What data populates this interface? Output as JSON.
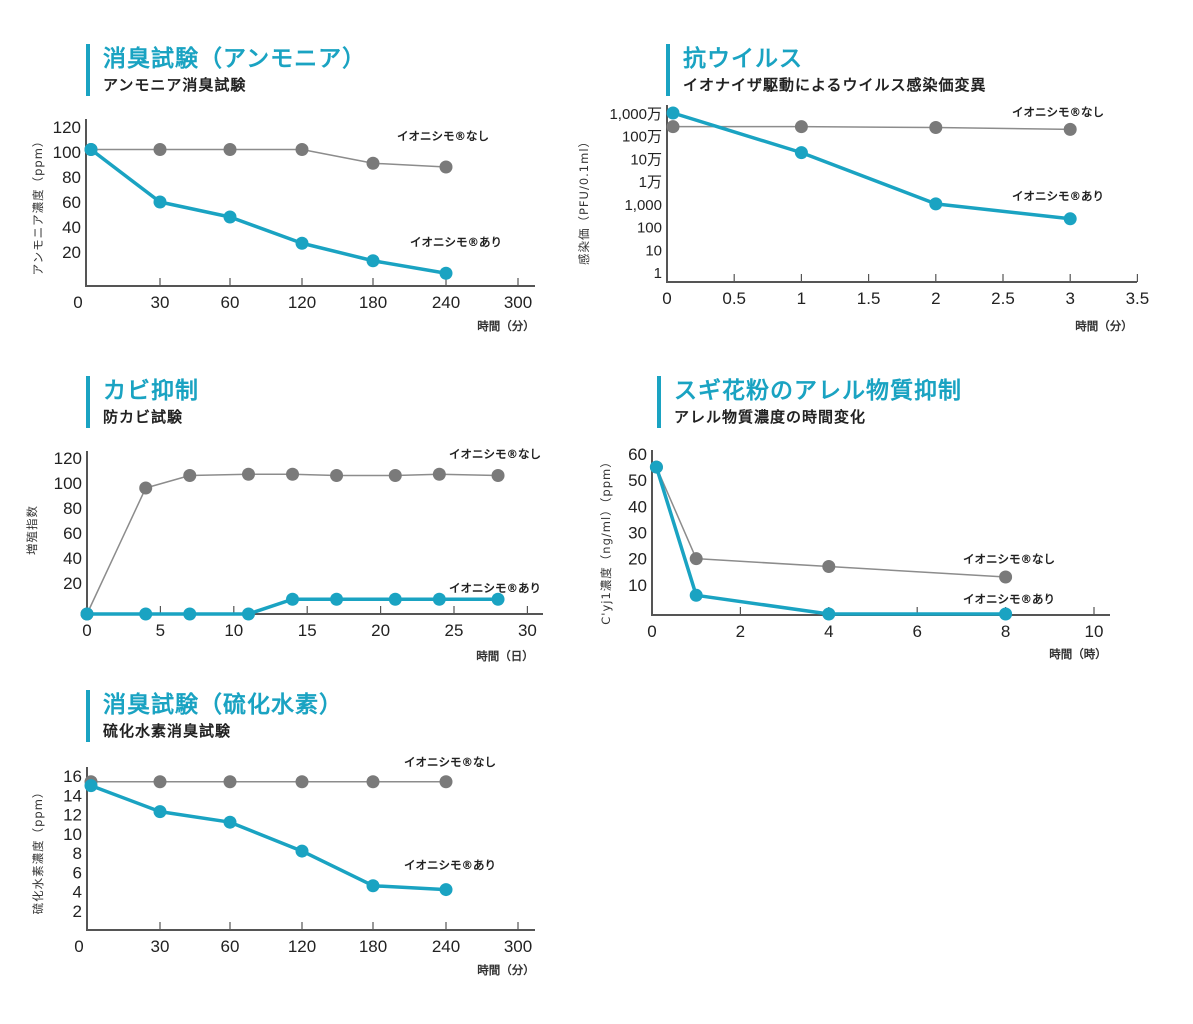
{
  "colors": {
    "accent": "#1aa3c2",
    "without": "#7a7a7a",
    "without_line": "#8c8c8c",
    "axis": "#555555"
  },
  "chart_data": [
    {
      "id": "ammonia",
      "type": "line",
      "title": "消臭試験（アンモニア）",
      "subtitle": "アンモニア消臭試験",
      "xlabel": "時間（分）",
      "ylabel": "アンモニア濃度（ppm）",
      "x_tick_labels": [
        "0",
        "30",
        "60",
        "120",
        "180",
        "240",
        "300"
      ],
      "x_categorical": true,
      "y_ticks": [
        20,
        40,
        60,
        80,
        100,
        120
      ],
      "y_tick_labels": [
        "20",
        "40",
        "60",
        "80",
        "100",
        "120"
      ],
      "ylim": [
        0,
        120
      ],
      "series": [
        {
          "name": "イオニシモ®なし",
          "x": [
            0,
            30,
            60,
            120,
            180,
            240
          ],
          "values": [
            102,
            102,
            102,
            102,
            91,
            88
          ]
        },
        {
          "name": "イオニシモ®あり",
          "x": [
            0,
            30,
            60,
            120,
            180,
            240
          ],
          "values": [
            102,
            60,
            48,
            27,
            13,
            3
          ]
        }
      ]
    },
    {
      "id": "virus",
      "type": "line",
      "title": "抗ウイルス",
      "subtitle": "イオナイザ駆動によるウイルス感染価変異",
      "xlabel": "時間（分）",
      "ylabel": "感染価（PFU/0.1ml）",
      "x_ticks": [
        0,
        0.5,
        1,
        1.5,
        2,
        2.5,
        3,
        3.5
      ],
      "x_tick_labels": [
        "0",
        "0.5",
        "1",
        "1.5",
        "2",
        "2.5",
        "3",
        "3.5"
      ],
      "xlim": [
        0,
        3.5
      ],
      "y_scale": "log",
      "y_ticks": [
        1,
        10,
        100,
        1000,
        10000,
        100000,
        1000000,
        10000000
      ],
      "y_tick_labels": [
        "1",
        "10",
        "100",
        "1,000",
        "1万",
        "10万",
        "100万",
        "1,000万"
      ],
      "ylim": [
        1,
        10000000
      ],
      "series": [
        {
          "name": "イオニシモ®なし",
          "x": [
            0,
            1,
            2,
            3
          ],
          "values": [
            2500000,
            2500000,
            2300000,
            1900000
          ]
        },
        {
          "name": "イオニシモ®あり",
          "x": [
            0,
            1,
            2,
            3
          ],
          "values": [
            10000000,
            180000,
            1000,
            220
          ]
        }
      ]
    },
    {
      "id": "mold",
      "type": "line",
      "title": "カビ抑制",
      "subtitle": "防カビ試験",
      "xlabel": "時間（日）",
      "ylabel": "増殖指数",
      "x_ticks": [
        0,
        5,
        10,
        15,
        20,
        25,
        30
      ],
      "x_tick_labels": [
        "0",
        "5",
        "10",
        "15",
        "20",
        "25",
        "30"
      ],
      "xlim": [
        0,
        30
      ],
      "y_ticks": [
        20,
        40,
        60,
        80,
        100,
        120
      ],
      "y_tick_labels": [
        "20",
        "40",
        "60",
        "80",
        "100",
        "120"
      ],
      "ylim": [
        0,
        120
      ],
      "series": [
        {
          "name": "イオニシモ®なし",
          "x": [
            0,
            4,
            7,
            11,
            14,
            17,
            21,
            24,
            28
          ],
          "values": [
            0,
            96,
            106,
            107,
            107,
            106,
            106,
            107,
            106
          ]
        },
        {
          "name": "イオニシモ®あり",
          "x": [
            0,
            4,
            7,
            11,
            14,
            17,
            21,
            24,
            28
          ],
          "values": [
            0,
            0,
            0,
            0,
            7,
            7,
            7,
            7,
            7
          ]
        }
      ]
    },
    {
      "id": "pollen",
      "type": "line",
      "title": "スギ花粉のアレル物質抑制",
      "subtitle": "アレル物質濃度の時間変化",
      "xlabel": "時間（時）",
      "ylabel": "C'yj1濃度（ng/ml）（ppm）",
      "x_ticks": [
        0,
        2,
        4,
        6,
        8,
        10
      ],
      "x_tick_labels": [
        "0",
        "2",
        "4",
        "6",
        "8",
        "10"
      ],
      "xlim": [
        0,
        10
      ],
      "y_ticks": [
        10,
        20,
        30,
        40,
        50,
        60
      ],
      "y_tick_labels": [
        "10",
        "20",
        "30",
        "40",
        "50",
        "60"
      ],
      "ylim": [
        0,
        60
      ],
      "series": [
        {
          "name": "イオニシモ®なし",
          "x": [
            0.1,
            1,
            4,
            8
          ],
          "values": [
            55,
            20,
            17,
            13
          ]
        },
        {
          "name": "イオニシモ®あり",
          "x": [
            0.1,
            1,
            4,
            8
          ],
          "values": [
            55,
            6,
            0,
            0
          ]
        }
      ]
    },
    {
      "id": "h2s",
      "type": "line",
      "title": "消臭試験（硫化水素）",
      "subtitle": "硫化水素消臭試験",
      "xlabel": "時間（分）",
      "ylabel": "硫化水素濃度（ppm）",
      "x_tick_labels": [
        "0",
        "30",
        "60",
        "120",
        "180",
        "240",
        "300"
      ],
      "x_categorical": true,
      "y_ticks": [
        2,
        4,
        6,
        8,
        10,
        12,
        14,
        16
      ],
      "y_tick_labels": [
        "2",
        "4",
        "6",
        "8",
        "10",
        "12",
        "14",
        "16"
      ],
      "ylim": [
        0,
        16.5
      ],
      "series": [
        {
          "name": "イオニシモ®なし",
          "x": [
            0,
            30,
            60,
            120,
            180,
            240
          ],
          "values": [
            15.4,
            15.4,
            15.4,
            15.4,
            15.4,
            15.4
          ]
        },
        {
          "name": "イオニシモ®あり",
          "x": [
            0,
            30,
            60,
            120,
            180,
            240
          ],
          "values": [
            15,
            12.3,
            11.2,
            8.2,
            4.6,
            4.2
          ]
        }
      ]
    }
  ]
}
